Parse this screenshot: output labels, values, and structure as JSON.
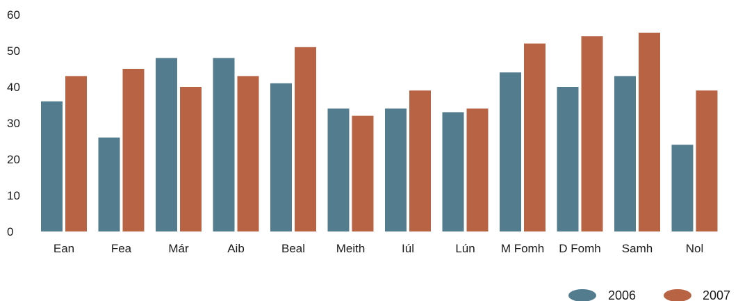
{
  "chart_data": {
    "type": "bar",
    "title": "",
    "xlabel": "",
    "ylabel": "",
    "categories": [
      "Ean",
      "Fea",
      "Már",
      "Aib",
      "Beal",
      "Meith",
      "Iúl",
      "Lún",
      "M Fomh",
      "D Fomh",
      "Samh",
      "Nol"
    ],
    "series": [
      {
        "name": "2006",
        "color": "#537d8f",
        "values": [
          36,
          26,
          48,
          48,
          41,
          34,
          34,
          33,
          44,
          40,
          43,
          24
        ]
      },
      {
        "name": "2007",
        "color": "#b86444",
        "values": [
          43,
          45,
          40,
          43,
          51,
          32,
          39,
          34,
          52,
          54,
          55,
          39
        ]
      }
    ],
    "ylim": [
      0,
      60
    ],
    "yticks": [
      0,
      10,
      20,
      30,
      40,
      50,
      60
    ],
    "grid": false,
    "legend_position": "bottom-right"
  }
}
